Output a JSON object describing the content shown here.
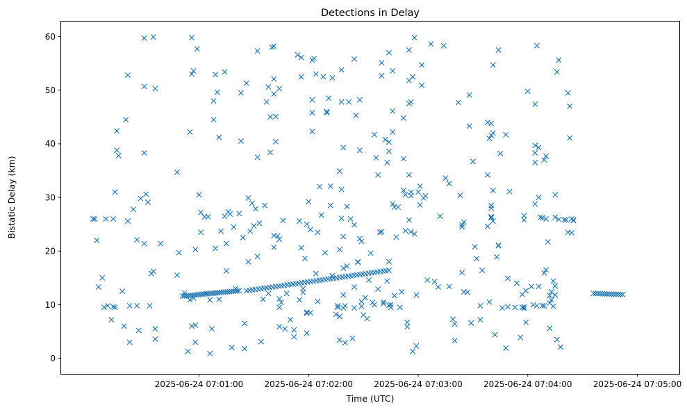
{
  "chart_data": {
    "type": "scatter",
    "title": "Detections in Delay",
    "xlabel": "Time (UTC)",
    "ylabel": "Bistatic Delay (km)",
    "x_unit": "seconds after 2025-06-24 07:00:00 UTC",
    "xlim": [
      -15.5,
      323
    ],
    "ylim": [
      -2.9,
      62.8
    ],
    "marker": "x",
    "color": "#1f77b4",
    "grid": false,
    "legend": "none",
    "xticks": [
      {
        "value": 60,
        "label": "2025-06-24 07:01:00"
      },
      {
        "value": 120,
        "label": "2025-06-24 07:02:00"
      },
      {
        "value": 180,
        "label": "2025-06-24 07:03:00"
      },
      {
        "value": 240,
        "label": "2025-06-24 07:04:00"
      },
      {
        "value": 300,
        "label": "2025-06-24 07:05:00"
      }
    ],
    "yticks": [
      {
        "value": 0,
        "label": "0"
      },
      {
        "value": 10,
        "label": "10"
      },
      {
        "value": 20,
        "label": "20"
      },
      {
        "value": 30,
        "label": "30"
      },
      {
        "value": 40,
        "label": "40"
      },
      {
        "value": 50,
        "label": "50"
      },
      {
        "value": 60,
        "label": "60"
      }
    ],
    "tracks": [
      {
        "x_start": 51,
        "x_end": 82,
        "y_start": 11.6,
        "y_end": 12.6,
        "count": 30
      },
      {
        "x_start": 86,
        "x_end": 164,
        "y_start": 12.6,
        "y_end": 16.4,
        "count": 50
      },
      {
        "x_start": 276,
        "x_end": 292,
        "y_start": 12.1,
        "y_end": 11.9,
        "count": 14
      }
    ],
    "points": [
      [
        2,
        26.0
      ],
      [
        3,
        26.0
      ],
      [
        4,
        22.0
      ],
      [
        5,
        13.3
      ],
      [
        7,
        15.0
      ],
      [
        8,
        9.5
      ],
      [
        9,
        26.0
      ],
      [
        10,
        9.8
      ],
      [
        12,
        7.2
      ],
      [
        13,
        26.0
      ],
      [
        13,
        9.6
      ],
      [
        14,
        31.0
      ],
      [
        14,
        9.5
      ],
      [
        15,
        42.4
      ],
      [
        15,
        38.8
      ],
      [
        16,
        37.8
      ],
      [
        18,
        12.5
      ],
      [
        19,
        6.0
      ],
      [
        20,
        44.5
      ],
      [
        21,
        25.6
      ],
      [
        21,
        52.8
      ],
      [
        22,
        9.8
      ],
      [
        22,
        3.0
      ],
      [
        24,
        27.8
      ],
      [
        26,
        22.1
      ],
      [
        26,
        9.8
      ],
      [
        27,
        5.2
      ],
      [
        28,
        29.8
      ],
      [
        30,
        59.7
      ],
      [
        30,
        50.7
      ],
      [
        30,
        38.3
      ],
      [
        30,
        21.4
      ],
      [
        31,
        30.6
      ],
      [
        32,
        29.1
      ],
      [
        33,
        9.8
      ],
      [
        34,
        15.8
      ],
      [
        35,
        16.2
      ],
      [
        35,
        59.9
      ],
      [
        36,
        50.3
      ],
      [
        36,
        3.6
      ],
      [
        36,
        5.5
      ],
      [
        39,
        21.4
      ],
      [
        48,
        34.7
      ],
      [
        49,
        19.7
      ],
      [
        48,
        15.5
      ],
      [
        52,
        12.2
      ],
      [
        54,
        1.3
      ],
      [
        55,
        42.2
      ],
      [
        55,
        10.9
      ],
      [
        56,
        53.0
      ],
      [
        56,
        59.8
      ],
      [
        56,
        6.0
      ],
      [
        57,
        53.6
      ],
      [
        57,
        11.2
      ],
      [
        58,
        6.2
      ],
      [
        58,
        3.0
      ],
      [
        58,
        20.3
      ],
      [
        59,
        57.7
      ],
      [
        60,
        30.5
      ],
      [
        61,
        27.2
      ],
      [
        61,
        23.5
      ],
      [
        63,
        26.4
      ],
      [
        64,
        12.1
      ],
      [
        65,
        26.4
      ],
      [
        66,
        0.9
      ],
      [
        66,
        10.9
      ],
      [
        67,
        5.5
      ],
      [
        68,
        44.5
      ],
      [
        68,
        48.0
      ],
      [
        69,
        52.9
      ],
      [
        69,
        20.5
      ],
      [
        70,
        49.6
      ],
      [
        71,
        41.2
      ],
      [
        71,
        11.0
      ],
      [
        72,
        23.7
      ],
      [
        74,
        53.4
      ],
      [
        74,
        26.5
      ],
      [
        75,
        21.4
      ],
      [
        75,
        16.3
      ],
      [
        76,
        27.3
      ],
      [
        77,
        26.9
      ],
      [
        78,
        2.0
      ],
      [
        79,
        24.5
      ],
      [
        80,
        13.0
      ],
      [
        82,
        27.0
      ],
      [
        83,
        49.5
      ],
      [
        83,
        40.5
      ],
      [
        84,
        22.5
      ],
      [
        85,
        6.5
      ],
      [
        85,
        1.8
      ],
      [
        86,
        51.3
      ],
      [
        87,
        29.9
      ],
      [
        87,
        18.0
      ],
      [
        88,
        23.7
      ],
      [
        89,
        28.9
      ],
      [
        90,
        24.7
      ],
      [
        91,
        27.9
      ],
      [
        92,
        57.3
      ],
      [
        92,
        37.5
      ],
      [
        92,
        19.0
      ],
      [
        93,
        25.2
      ],
      [
        94,
        3.1
      ],
      [
        95,
        11.0
      ],
      [
        96,
        28.5
      ],
      [
        97,
        47.8
      ],
      [
        98,
        50.6
      ],
      [
        98,
        12.1
      ],
      [
        99,
        45.0
      ],
      [
        99,
        38.4
      ],
      [
        100,
        58.0
      ],
      [
        101,
        58.2
      ],
      [
        101,
        52.1
      ],
      [
        101,
        49.3
      ],
      [
        101,
        22.9
      ],
      [
        101,
        20.7
      ],
      [
        102,
        45.1
      ],
      [
        102,
        40.4
      ],
      [
        103,
        22.8
      ],
      [
        104,
        50.3
      ],
      [
        104,
        22.2
      ],
      [
        104,
        9.5
      ],
      [
        104,
        11.1
      ],
      [
        104,
        5.9
      ],
      [
        105,
        10.4
      ],
      [
        106,
        25.7
      ],
      [
        107,
        5.5
      ],
      [
        108,
        12.1
      ],
      [
        110,
        7.2
      ],
      [
        112,
        4.0
      ],
      [
        112,
        5.3
      ],
      [
        114,
        56.6
      ],
      [
        115,
        25.6
      ],
      [
        115,
        10.9
      ],
      [
        116,
        56.1
      ],
      [
        116,
        52.5
      ],
      [
        116,
        20.6
      ],
      [
        117,
        13.0
      ],
      [
        117,
        12.3
      ],
      [
        118,
        18.6
      ],
      [
        119,
        25.0
      ],
      [
        119,
        8.6
      ],
      [
        119,
        8.4
      ],
      [
        119,
        4.7
      ],
      [
        120,
        29.2
      ],
      [
        121,
        24.0
      ],
      [
        121,
        8.5
      ],
      [
        122,
        55.6
      ],
      [
        122,
        48.2
      ],
      [
        122,
        45.8
      ],
      [
        122,
        42.3
      ],
      [
        123,
        55.9
      ],
      [
        124,
        53.0
      ],
      [
        124,
        15.8
      ],
      [
        125,
        23.5
      ],
      [
        125,
        10.6
      ],
      [
        126,
        32.0
      ],
      [
        127,
        26.7
      ],
      [
        128,
        52.5
      ],
      [
        129,
        19.7
      ],
      [
        130,
        46.0
      ],
      [
        130,
        45.8
      ],
      [
        131,
        48.5
      ],
      [
        132,
        28.5
      ],
      [
        132,
        32.1
      ],
      [
        133,
        52.3
      ],
      [
        133,
        15.4
      ],
      [
        135,
        8.2
      ],
      [
        136,
        9.8
      ],
      [
        136,
        9.5
      ],
      [
        137,
        34.9
      ],
      [
        137,
        20.3
      ],
      [
        137,
        7.8
      ],
      [
        137,
        3.4
      ],
      [
        138,
        53.8
      ],
      [
        138,
        47.8
      ],
      [
        138,
        31.5
      ],
      [
        138,
        26.1
      ],
      [
        139,
        39.3
      ],
      [
        139,
        22.7
      ],
      [
        139,
        16.8
      ],
      [
        139,
        11.8
      ],
      [
        139,
        9.4
      ],
      [
        140,
        9.8
      ],
      [
        140,
        2.9
      ],
      [
        141,
        17.2
      ],
      [
        141,
        28.3
      ],
      [
        142,
        47.8
      ],
      [
        143,
        26.0
      ],
      [
        144,
        3.7
      ],
      [
        145,
        55.8
      ],
      [
        145,
        24.9
      ],
      [
        145,
        13.3
      ],
      [
        145,
        9.4
      ],
      [
        146,
        45.3
      ],
      [
        147,
        18.0
      ],
      [
        147,
        17.9
      ],
      [
        148,
        22.3
      ],
      [
        148,
        48.2
      ],
      [
        148,
        38.8
      ],
      [
        149,
        21.8
      ],
      [
        149,
        10.6
      ],
      [
        149,
        9.7
      ],
      [
        150,
        8.1
      ],
      [
        151,
        11.3
      ],
      [
        152,
        7.4
      ],
      [
        153,
        14.6
      ],
      [
        154,
        19.6
      ],
      [
        155,
        10.4
      ],
      [
        156,
        10.0
      ],
      [
        156,
        41.7
      ],
      [
        157,
        37.4
      ],
      [
        158,
        34.2
      ],
      [
        158,
        12.9
      ],
      [
        159,
        23.5
      ],
      [
        160,
        55.1
      ],
      [
        160,
        52.7
      ],
      [
        160,
        23.6
      ],
      [
        161,
        10.5
      ],
      [
        161,
        10.2
      ],
      [
        162,
        40.8
      ],
      [
        163,
        14.4
      ],
      [
        163,
        36.5
      ],
      [
        164,
        38.6
      ],
      [
        164,
        40.3
      ],
      [
        164,
        57.0
      ],
      [
        164,
        18.0
      ],
      [
        164,
        9.9
      ],
      [
        165,
        10.0
      ],
      [
        165,
        9.5
      ],
      [
        166,
        53.6
      ],
      [
        166,
        46.1
      ],
      [
        166,
        42.2
      ],
      [
        166,
        28.8
      ],
      [
        167,
        11.7
      ],
      [
        167,
        28.2
      ],
      [
        168,
        22.6
      ],
      [
        169,
        28.2
      ],
      [
        170,
        9.5
      ],
      [
        171,
        12.4
      ],
      [
        172,
        44.8
      ],
      [
        172,
        37.2
      ],
      [
        172,
        31.3
      ],
      [
        173,
        30.5
      ],
      [
        173,
        23.8
      ],
      [
        174,
        6.7
      ],
      [
        174,
        5.9
      ],
      [
        175,
        57.5
      ],
      [
        175,
        51.8
      ],
      [
        175,
        47.5
      ],
      [
        175,
        34.2
      ],
      [
        175,
        25.8
      ],
      [
        176,
        47.8
      ],
      [
        176,
        31.0
      ],
      [
        176,
        30.3
      ],
      [
        176,
        23.6
      ],
      [
        177,
        52.5
      ],
      [
        177,
        1.3
      ],
      [
        178,
        59.8
      ],
      [
        178,
        23.2
      ],
      [
        179,
        2.3
      ],
      [
        179,
        11.8
      ],
      [
        180,
        31.0
      ],
      [
        181,
        32.1
      ],
      [
        181,
        28.6
      ],
      [
        182,
        54.7
      ],
      [
        182,
        50.9
      ],
      [
        183,
        29.9
      ],
      [
        184,
        30.3
      ],
      [
        185,
        14.6
      ],
      [
        187,
        58.6
      ],
      [
        189,
        14.3
      ],
      [
        191,
        13.3
      ],
      [
        192,
        26.5
      ],
      [
        194,
        58.3
      ],
      [
        195,
        33.6
      ],
      [
        197,
        32.6
      ],
      [
        197,
        13.4
      ],
      [
        199,
        7.3
      ],
      [
        200,
        6.4
      ],
      [
        200,
        3.3
      ],
      [
        202,
        47.7
      ],
      [
        203,
        30.4
      ],
      [
        204,
        24.9
      ],
      [
        204,
        24.5
      ],
      [
        204,
        16.0
      ],
      [
        205,
        25.4
      ],
      [
        205,
        12.4
      ],
      [
        207,
        12.3
      ],
      [
        208,
        49.1
      ],
      [
        208,
        43.3
      ],
      [
        209,
        6.6
      ],
      [
        210,
        36.7
      ],
      [
        211,
        20.8
      ],
      [
        212,
        18.6
      ],
      [
        214,
        7.2
      ],
      [
        214,
        9.8
      ],
      [
        215,
        16.4
      ],
      [
        218,
        34.2
      ],
      [
        218,
        44.0
      ],
      [
        218,
        24.6
      ],
      [
        219,
        41.0
      ],
      [
        219,
        10.5
      ],
      [
        220,
        43.8
      ],
      [
        220,
        41.6
      ],
      [
        220,
        26.4
      ],
      [
        220,
        26.2
      ],
      [
        220,
        28.5
      ],
      [
        220,
        28.0
      ],
      [
        221,
        54.7
      ],
      [
        221,
        42.0
      ],
      [
        221,
        31.3
      ],
      [
        221,
        25.6
      ],
      [
        222,
        4.4
      ],
      [
        223,
        18.9
      ],
      [
        224,
        57.5
      ],
      [
        224,
        21.0
      ],
      [
        224,
        21.1
      ],
      [
        225,
        38.2
      ],
      [
        226,
        9.4
      ],
      [
        228,
        41.7
      ],
      [
        228,
        1.9
      ],
      [
        229,
        14.9
      ],
      [
        229,
        9.6
      ],
      [
        230,
        31.1
      ],
      [
        233,
        9.5
      ],
      [
        234,
        14.0
      ],
      [
        236,
        3.9
      ],
      [
        237,
        9.5
      ],
      [
        237,
        11.9
      ],
      [
        238,
        26.6
      ],
      [
        238,
        25.8
      ],
      [
        238,
        9.3
      ],
      [
        238,
        9.6
      ],
      [
        239,
        6.7
      ],
      [
        239,
        12.6
      ],
      [
        240,
        49.8
      ],
      [
        242,
        13.4
      ],
      [
        243,
        10.0
      ],
      [
        244,
        47.4
      ],
      [
        244,
        39.7
      ],
      [
        244,
        38.3
      ],
      [
        244,
        36.5
      ],
      [
        244,
        28.8
      ],
      [
        245,
        9.8
      ],
      [
        245,
        58.3
      ],
      [
        246,
        39.3
      ],
      [
        246,
        30.0
      ],
      [
        246,
        13.4
      ],
      [
        247,
        26.3
      ],
      [
        248,
        26.2
      ],
      [
        248,
        9.8
      ],
      [
        249,
        15.9
      ],
      [
        249,
        37.0
      ],
      [
        249,
        9.8
      ],
      [
        250,
        26.0
      ],
      [
        250,
        16.5
      ],
      [
        250,
        37.7
      ],
      [
        251,
        21.7
      ],
      [
        252,
        10.3
      ],
      [
        252,
        5.6
      ],
      [
        252,
        11.7
      ],
      [
        253,
        10.9
      ],
      [
        253,
        12.4
      ],
      [
        254,
        14.4
      ],
      [
        254,
        9.7
      ],
      [
        255,
        30.5
      ],
      [
        255,
        13.5
      ],
      [
        255,
        26.3
      ],
      [
        255,
        11.8
      ],
      [
        256,
        53.4
      ],
      [
        256,
        3.5
      ],
      [
        257,
        55.6
      ],
      [
        257,
        25.9
      ],
      [
        258,
        2.1
      ],
      [
        260,
        25.8
      ],
      [
        261,
        25.8
      ],
      [
        262,
        49.5
      ],
      [
        262,
        23.5
      ],
      [
        263,
        47.0
      ],
      [
        263,
        41.1
      ],
      [
        264,
        26.0
      ],
      [
        264,
        23.4
      ],
      [
        265,
        25.7
      ],
      [
        265,
        25.8
      ]
    ]
  }
}
